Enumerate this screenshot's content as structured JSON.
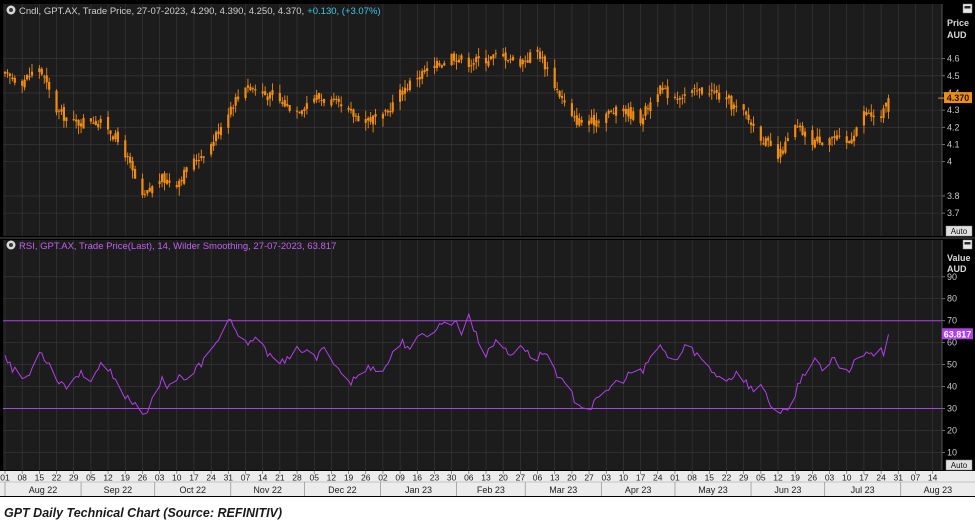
{
  "caption": "GPT Daily Technical Chart (Source: REFINITIV)",
  "colors": {
    "background": "#000000",
    "plot_background": "#1c1c1c",
    "grid": "#3a3a3a",
    "candle": "#f08c14",
    "rsi": "#b040e8",
    "axis_text": "#c8c8c8",
    "legend_text": "#cfcfcf",
    "change_text": "#3fc8e6",
    "rsi_legend_text": "#c060f0"
  },
  "price_panel": {
    "legend": "Cndl, GPT.AX, Trade Price, 27-07-2023, 4.290, 4.390, 4.250, 4.370,",
    "legend_change": "+0.130, (+3.07%)",
    "axis_title": "Price",
    "axis_unit": "AUD",
    "last_value_label": "4.370",
    "auto_label": "Auto",
    "legend_icon": "legend-circle-icon",
    "panel_icon": "panel-menu-icon"
  },
  "rsi_panel": {
    "legend": "RSI, GPT.AX, Trade Price(Last), 14, Wilder Smoothing, 27-07-2023, 63.817",
    "axis_title": "Value",
    "axis_unit": "AUD",
    "last_value_label": "63.817",
    "auto_label": "Auto",
    "legend_icon": "legend-circle-icon",
    "panel_icon": "panel-menu-icon"
  },
  "x_axis": {
    "day_ticks": [
      "01",
      "08",
      "15",
      "22",
      "29",
      "05",
      "12",
      "19",
      "26",
      "03",
      "10",
      "17",
      "24",
      "31",
      "07",
      "14",
      "21",
      "28",
      "05",
      "12",
      "19",
      "26",
      "02",
      "09",
      "16",
      "23",
      "30",
      "06",
      "13",
      "20",
      "27",
      "06",
      "13",
      "20",
      "27",
      "03",
      "10",
      "17",
      "24",
      "01",
      "08",
      "15",
      "22",
      "29",
      "05",
      "12",
      "19",
      "26",
      "03",
      "10",
      "17",
      "24",
      "31",
      "07",
      "14"
    ],
    "months": [
      "Aug 22",
      "Sep 22",
      "Oct 22",
      "Nov 22",
      "Dec 22",
      "Jan 23",
      "Feb 23",
      "Mar 23",
      "Apr 23",
      "May 23",
      "Jun 23",
      "Jul 23",
      "Aug 23"
    ]
  },
  "chart_data": [
    {
      "type": "candlestick",
      "symbol": "GPT.AX",
      "period": "daily",
      "ylabel": "Price",
      "yunit": "AUD",
      "y_ticks": [
        3.7,
        3.8,
        4,
        4.1,
        4.2,
        4.3,
        4.4,
        4.5,
        4.6
      ],
      "ylim": [
        3.66,
        4.72
      ],
      "x_range": [
        "2022-08-01",
        "2023-08-17"
      ],
      "last_candle": {
        "date": "2023-07-27",
        "open": 4.29,
        "high": 4.39,
        "low": 4.25,
        "close": 4.37
      },
      "grid": true,
      "approx_close_path": [
        {
          "date": "2022-08-01",
          "close": 4.5
        },
        {
          "date": "2022-08-08",
          "close": 4.47
        },
        {
          "date": "2022-08-15",
          "close": 4.55
        },
        {
          "date": "2022-08-22",
          "close": 4.3
        },
        {
          "date": "2022-08-29",
          "close": 4.22
        },
        {
          "date": "2022-09-05",
          "close": 4.25
        },
        {
          "date": "2022-09-12",
          "close": 4.2
        },
        {
          "date": "2022-09-19",
          "close": 4.05
        },
        {
          "date": "2022-09-26",
          "close": 3.78
        },
        {
          "date": "2022-10-03",
          "close": 3.9
        },
        {
          "date": "2022-10-10",
          "close": 3.88
        },
        {
          "date": "2022-10-17",
          "close": 4.0
        },
        {
          "date": "2022-10-24",
          "close": 4.1
        },
        {
          "date": "2022-10-31",
          "close": 4.3
        },
        {
          "date": "2022-11-07",
          "close": 4.45
        },
        {
          "date": "2022-11-14",
          "close": 4.4
        },
        {
          "date": "2022-11-21",
          "close": 4.35
        },
        {
          "date": "2022-11-28",
          "close": 4.3
        },
        {
          "date": "2022-12-05",
          "close": 4.38
        },
        {
          "date": "2022-12-12",
          "close": 4.35
        },
        {
          "date": "2022-12-19",
          "close": 4.28
        },
        {
          "date": "2022-12-26",
          "close": 4.25
        },
        {
          "date": "2023-01-02",
          "close": 4.25
        },
        {
          "date": "2023-01-09",
          "close": 4.4
        },
        {
          "date": "2023-01-16",
          "close": 4.5
        },
        {
          "date": "2023-01-23",
          "close": 4.55
        },
        {
          "date": "2023-01-30",
          "close": 4.62
        },
        {
          "date": "2023-02-06",
          "close": 4.58
        },
        {
          "date": "2023-02-13",
          "close": 4.6
        },
        {
          "date": "2023-02-20",
          "close": 4.62
        },
        {
          "date": "2023-02-27",
          "close": 4.58
        },
        {
          "date": "2023-03-06",
          "close": 4.65
        },
        {
          "date": "2023-03-13",
          "close": 4.45
        },
        {
          "date": "2023-03-20",
          "close": 4.25
        },
        {
          "date": "2023-03-27",
          "close": 4.22
        },
        {
          "date": "2023-04-03",
          "close": 4.28
        },
        {
          "date": "2023-04-10",
          "close": 4.3
        },
        {
          "date": "2023-04-17",
          "close": 4.25
        },
        {
          "date": "2023-04-24",
          "close": 4.42
        },
        {
          "date": "2023-05-01",
          "close": 4.38
        },
        {
          "date": "2023-05-08",
          "close": 4.4
        },
        {
          "date": "2023-05-15",
          "close": 4.42
        },
        {
          "date": "2023-05-22",
          "close": 4.35
        },
        {
          "date": "2023-05-29",
          "close": 4.28
        },
        {
          "date": "2023-06-05",
          "close": 4.15
        },
        {
          "date": "2023-06-12",
          "close": 4.02
        },
        {
          "date": "2023-06-19",
          "close": 4.2
        },
        {
          "date": "2023-06-26",
          "close": 4.12
        },
        {
          "date": "2023-07-03",
          "close": 4.15
        },
        {
          "date": "2023-07-10",
          "close": 4.1
        },
        {
          "date": "2023-07-17",
          "close": 4.28
        },
        {
          "date": "2023-07-24",
          "close": 4.25
        },
        {
          "date": "2023-07-27",
          "close": 4.37
        }
      ]
    },
    {
      "type": "line",
      "name": "RSI",
      "symbol": "GPT.AX",
      "period": 14,
      "smoothing": "Wilder Smoothing",
      "ylabel": "Value",
      "yunit": "AUD",
      "y_ticks": [
        10,
        20,
        30,
        40,
        50,
        60,
        70,
        80,
        90
      ],
      "ylim": [
        2,
        94
      ],
      "reference_lines": [
        30,
        70
      ],
      "x_range": [
        "2022-08-01",
        "2023-08-17"
      ],
      "last": {
        "date": "2023-07-27",
        "value": 63.817
      },
      "grid": true,
      "series": [
        {
          "date": "2022-08-01",
          "value": 55
        },
        {
          "date": "2022-08-04",
          "value": 48
        },
        {
          "date": "2022-08-08",
          "value": 44
        },
        {
          "date": "2022-08-11",
          "value": 45
        },
        {
          "date": "2022-08-15",
          "value": 57
        },
        {
          "date": "2022-08-18",
          "value": 52
        },
        {
          "date": "2022-08-22",
          "value": 44
        },
        {
          "date": "2022-08-26",
          "value": 40
        },
        {
          "date": "2022-08-31",
          "value": 46
        },
        {
          "date": "2022-09-05",
          "value": 44
        },
        {
          "date": "2022-09-09",
          "value": 49
        },
        {
          "date": "2022-09-13",
          "value": 46
        },
        {
          "date": "2022-09-16",
          "value": 40
        },
        {
          "date": "2022-09-20",
          "value": 35
        },
        {
          "date": "2022-09-23",
          "value": 32
        },
        {
          "date": "2022-09-27",
          "value": 28
        },
        {
          "date": "2022-09-30",
          "value": 33
        },
        {
          "date": "2022-10-04",
          "value": 43
        },
        {
          "date": "2022-10-07",
          "value": 40
        },
        {
          "date": "2022-10-11",
          "value": 46
        },
        {
          "date": "2022-10-14",
          "value": 42
        },
        {
          "date": "2022-10-18",
          "value": 48
        },
        {
          "date": "2022-10-21",
          "value": 52
        },
        {
          "date": "2022-10-25",
          "value": 57
        },
        {
          "date": "2022-10-28",
          "value": 65
        },
        {
          "date": "2022-11-01",
          "value": 71
        },
        {
          "date": "2022-11-04",
          "value": 62
        },
        {
          "date": "2022-11-08",
          "value": 58
        },
        {
          "date": "2022-11-11",
          "value": 63
        },
        {
          "date": "2022-11-15",
          "value": 56
        },
        {
          "date": "2022-11-18",
          "value": 55
        },
        {
          "date": "2022-11-22",
          "value": 51
        },
        {
          "date": "2022-11-25",
          "value": 52
        },
        {
          "date": "2022-11-29",
          "value": 58
        },
        {
          "date": "2022-12-02",
          "value": 55
        },
        {
          "date": "2022-12-06",
          "value": 53
        },
        {
          "date": "2022-12-09",
          "value": 57
        },
        {
          "date": "2022-12-13",
          "value": 52
        },
        {
          "date": "2022-12-16",
          "value": 46
        },
        {
          "date": "2022-12-20",
          "value": 42
        },
        {
          "date": "2022-12-23",
          "value": 45
        },
        {
          "date": "2022-12-28",
          "value": 49
        },
        {
          "date": "2023-01-03",
          "value": 48
        },
        {
          "date": "2023-01-06",
          "value": 56
        },
        {
          "date": "2023-01-10",
          "value": 60
        },
        {
          "date": "2023-01-13",
          "value": 58
        },
        {
          "date": "2023-01-17",
          "value": 62
        },
        {
          "date": "2023-01-20",
          "value": 64
        },
        {
          "date": "2023-01-24",
          "value": 67
        },
        {
          "date": "2023-01-27",
          "value": 69
        },
        {
          "date": "2023-01-31",
          "value": 70
        },
        {
          "date": "2023-02-03",
          "value": 65
        },
        {
          "date": "2023-02-06",
          "value": 73
        },
        {
          "date": "2023-02-09",
          "value": 63
        },
        {
          "date": "2023-02-13",
          "value": 55
        },
        {
          "date": "2023-02-16",
          "value": 60
        },
        {
          "date": "2023-02-20",
          "value": 58
        },
        {
          "date": "2023-02-23",
          "value": 54
        },
        {
          "date": "2023-02-27",
          "value": 60
        },
        {
          "date": "2023-03-02",
          "value": 55
        },
        {
          "date": "2023-03-06",
          "value": 53
        },
        {
          "date": "2023-03-09",
          "value": 56
        },
        {
          "date": "2023-03-13",
          "value": 48
        },
        {
          "date": "2023-03-16",
          "value": 42
        },
        {
          "date": "2023-03-20",
          "value": 36
        },
        {
          "date": "2023-03-23",
          "value": 32
        },
        {
          "date": "2023-03-27",
          "value": 30
        },
        {
          "date": "2023-03-30",
          "value": 33
        },
        {
          "date": "2023-04-03",
          "value": 38
        },
        {
          "date": "2023-04-06",
          "value": 41
        },
        {
          "date": "2023-04-11",
          "value": 44
        },
        {
          "date": "2023-04-14",
          "value": 47
        },
        {
          "date": "2023-04-18",
          "value": 46
        },
        {
          "date": "2023-04-21",
          "value": 54
        },
        {
          "date": "2023-04-25",
          "value": 58
        },
        {
          "date": "2023-04-28",
          "value": 54
        },
        {
          "date": "2023-05-02",
          "value": 52
        },
        {
          "date": "2023-05-05",
          "value": 58
        },
        {
          "date": "2023-05-09",
          "value": 56
        },
        {
          "date": "2023-05-12",
          "value": 52
        },
        {
          "date": "2023-05-16",
          "value": 47
        },
        {
          "date": "2023-05-19",
          "value": 45
        },
        {
          "date": "2023-05-23",
          "value": 43
        },
        {
          "date": "2023-05-26",
          "value": 47
        },
        {
          "date": "2023-05-30",
          "value": 42
        },
        {
          "date": "2023-06-02",
          "value": 38
        },
        {
          "date": "2023-06-06",
          "value": 40
        },
        {
          "date": "2023-06-09",
          "value": 32
        },
        {
          "date": "2023-06-13",
          "value": 27
        },
        {
          "date": "2023-06-16",
          "value": 29
        },
        {
          "date": "2023-06-20",
          "value": 40
        },
        {
          "date": "2023-06-23",
          "value": 47
        },
        {
          "date": "2023-06-27",
          "value": 53
        },
        {
          "date": "2023-06-30",
          "value": 46
        },
        {
          "date": "2023-07-04",
          "value": 52
        },
        {
          "date": "2023-07-07",
          "value": 50
        },
        {
          "date": "2023-07-11",
          "value": 47
        },
        {
          "date": "2023-07-14",
          "value": 53
        },
        {
          "date": "2023-07-18",
          "value": 57
        },
        {
          "date": "2023-07-21",
          "value": 55
        },
        {
          "date": "2023-07-25",
          "value": 56
        },
        {
          "date": "2023-07-27",
          "value": 63.817
        }
      ]
    }
  ]
}
